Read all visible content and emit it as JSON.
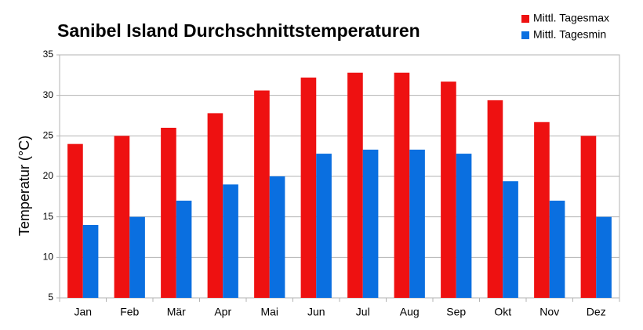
{
  "chart_data": {
    "type": "bar",
    "title": "Sanibel Island Durchschnittstemperaturen",
    "y_label": "Temperatur (°C)",
    "categories": [
      "Jan",
      "Feb",
      "Mär",
      "Apr",
      "Mai",
      "Jun",
      "Jul",
      "Aug",
      "Sep",
      "Okt",
      "Nov",
      "Dez"
    ],
    "series": [
      {
        "name": "Mittl. Tagesmax",
        "color": "#ee1111",
        "values": [
          24,
          25,
          26,
          27.8,
          30.6,
          32.2,
          32.8,
          32.8,
          31.7,
          29.4,
          26.7,
          25
        ]
      },
      {
        "name": "Mittl. Tagesmin",
        "color": "#0a6fe0",
        "values": [
          14,
          15,
          17,
          19,
          20,
          22.8,
          23.3,
          23.3,
          22.8,
          19.4,
          17,
          15
        ]
      }
    ],
    "ylim": [
      5,
      35
    ],
    "yticks": [
      5,
      10,
      15,
      20,
      25,
      30,
      35
    ],
    "grid": true,
    "legend": "top-right"
  }
}
